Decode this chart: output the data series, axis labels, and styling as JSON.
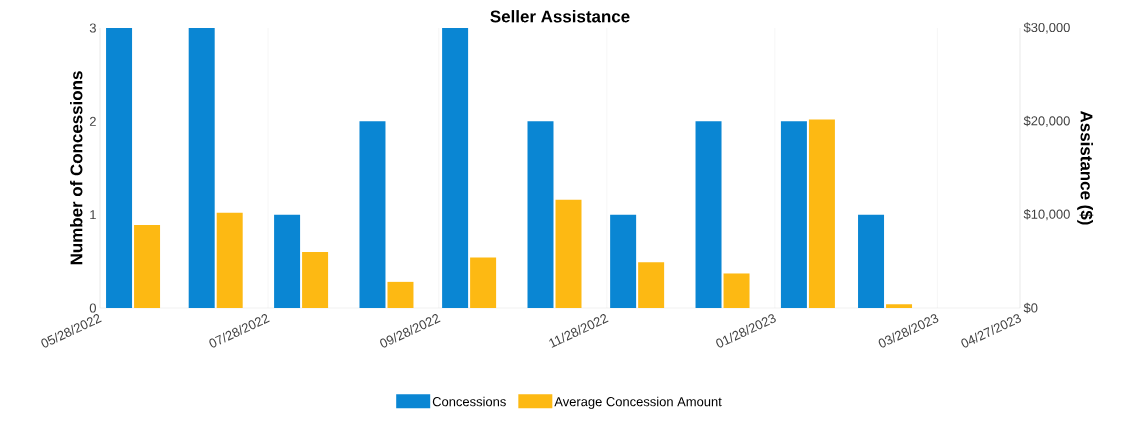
{
  "chart_data": {
    "type": "bar",
    "title": "Seller Assistance",
    "ylabel": "Number of Concessions",
    "y2label": "Assistance ($)",
    "x": [
      "2022-06-09",
      "2022-07-09",
      "2022-08-09",
      "2022-09-09",
      "2022-10-09",
      "2022-11-09",
      "2022-12-09",
      "2023-01-09",
      "2023-02-09",
      "2023-03-09"
    ],
    "xlim": [
      "2022-05-28",
      "2023-04-27"
    ],
    "xticks": [
      {
        "value": "2022-05-28",
        "label": "05/28/2022"
      },
      {
        "value": "2022-07-28",
        "label": "07/28/2022"
      },
      {
        "value": "2022-09-28",
        "label": "09/28/2022"
      },
      {
        "value": "2022-11-28",
        "label": "11/28/2022"
      },
      {
        "value": "2023-01-28",
        "label": "01/28/2023"
      },
      {
        "value": "2023-03-28",
        "label": "03/28/2023"
      },
      {
        "value": "2023-04-27",
        "label": "04/27/2023"
      }
    ],
    "ylim": [
      0,
      3
    ],
    "yticks": [
      0,
      1,
      2,
      3
    ],
    "y2lim": [
      0,
      30000
    ],
    "y2ticks": [
      {
        "value": 0,
        "label": "$0"
      },
      {
        "value": 10000,
        "label": "$10,000"
      },
      {
        "value": 20000,
        "label": "$20,000"
      },
      {
        "value": 30000,
        "label": "$30,000"
      }
    ],
    "series": [
      {
        "name": "Concessions",
        "color": "#0a86d3",
        "values": [
          3,
          3,
          1,
          2,
          3,
          2,
          1,
          2,
          2,
          1
        ]
      },
      {
        "name": "Average Concession Amount",
        "color": "#fdb913",
        "axis": "y2",
        "values": [
          8900,
          10200,
          6000,
          2800,
          5400,
          11600,
          4900,
          3700,
          20200,
          400
        ]
      }
    ],
    "grid": "x",
    "legend": "bottom"
  }
}
